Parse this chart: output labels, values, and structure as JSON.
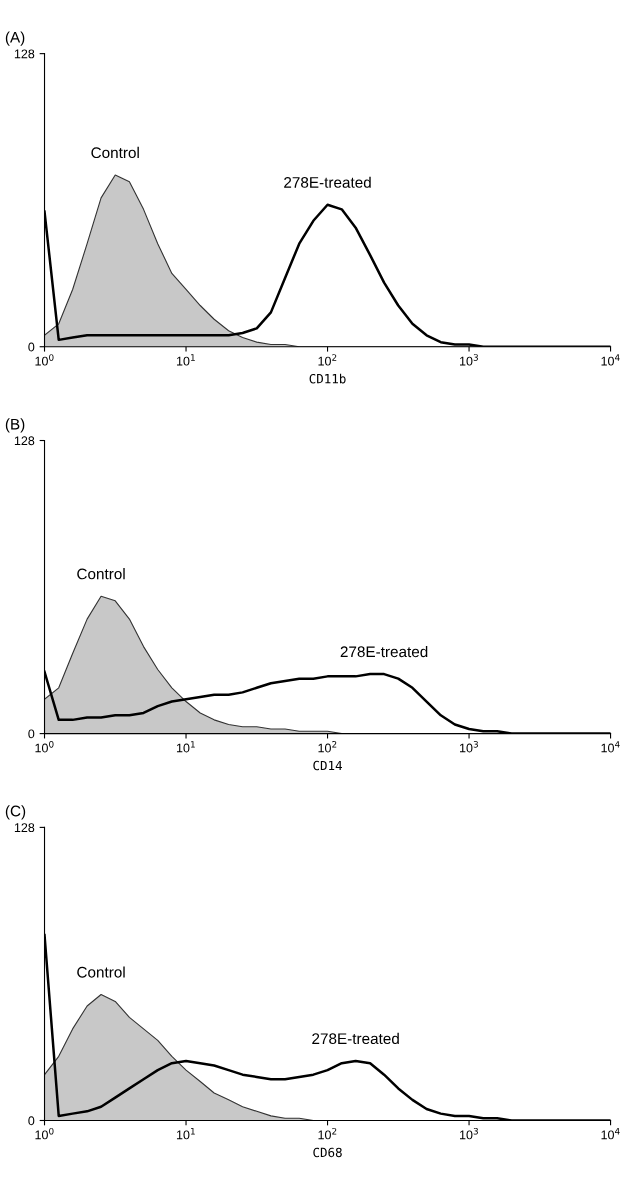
{
  "chart_data": [
    {
      "type": "area",
      "title": "(A)",
      "xlabel": "CD11b",
      "log": "x",
      "xlim": [
        1,
        10000
      ],
      "ylim": [
        0,
        128
      ],
      "xticks": [
        {
          "value": 1,
          "label": "10$^{0}$"
        },
        {
          "value": 10,
          "label": "10$^{1}$"
        },
        {
          "value": 100,
          "label": "10$^{2}$"
        },
        {
          "value": 1000,
          "label": "10$^{3}$"
        },
        {
          "value": 10000,
          "label": "10$^{4}$"
        }
      ],
      "yticks": [
        0,
        128
      ],
      "grid": false,
      "legend": false,
      "x": [
        1,
        1.26,
        1.58,
        2,
        2.51,
        3.16,
        3.98,
        5.01,
        6.31,
        7.94,
        10,
        12.6,
        15.8,
        20,
        25.1,
        31.6,
        39.8,
        50.1,
        63.1,
        79.4,
        100,
        126,
        158,
        200,
        251,
        316,
        398,
        501,
        631,
        794,
        1000,
        1260,
        1580,
        2000,
        2510,
        3160,
        3980,
        5010,
        6310,
        7940,
        10000
      ],
      "series": [
        {
          "name": "Control",
          "color": "#c8c8c8",
          "values": [
            5,
            10,
            25,
            45,
            65,
            75,
            72,
            60,
            45,
            32,
            25,
            18,
            12,
            7,
            4,
            2,
            1,
            1,
            0,
            0,
            0,
            0,
            0,
            0,
            0,
            0,
            0,
            0,
            0,
            0,
            0,
            0,
            0,
            0,
            0,
            0,
            0,
            0,
            0,
            0,
            0
          ]
        },
        {
          "name": "278E-treated",
          "type": "line",
          "color": "#000000",
          "values": [
            59,
            3,
            4,
            5,
            5,
            5,
            5,
            5,
            5,
            5,
            5,
            5,
            5,
            5,
            6,
            8,
            15,
            30,
            45,
            55,
            62,
            60,
            52,
            40,
            28,
            18,
            10,
            5,
            2,
            1,
            1,
            0,
            0,
            0,
            0,
            0,
            0,
            0,
            0,
            0,
            0
          ]
        }
      ]
    },
    {
      "type": "area",
      "title": "(B)",
      "xlabel": "CD14",
      "log": "x",
      "xlim": [
        1,
        10000
      ],
      "ylim": [
        0,
        128
      ],
      "xticks": [
        {
          "value": 1,
          "label": "10$^{0}$"
        },
        {
          "value": 10,
          "label": "10$^{1}$"
        },
        {
          "value": 100,
          "label": "10$^{2}$"
        },
        {
          "value": 1000,
          "label": "10$^{3}$"
        },
        {
          "value": 10000,
          "label": "10$^{4}$"
        }
      ],
      "yticks": [
        0,
        128
      ],
      "grid": false,
      "legend": false,
      "x": [
        1,
        1.26,
        1.58,
        2,
        2.51,
        3.16,
        3.98,
        5.01,
        6.31,
        7.94,
        10,
        12.6,
        15.8,
        20,
        25.1,
        31.6,
        39.8,
        50.1,
        63.1,
        79.4,
        100,
        126,
        158,
        200,
        251,
        316,
        398,
        501,
        631,
        794,
        1000,
        1260,
        1580,
        2000,
        2510,
        3160,
        3980,
        5010,
        6310,
        7940,
        10000
      ],
      "series": [
        {
          "name": "Control",
          "color": "#c8c8c8",
          "values": [
            15,
            20,
            35,
            50,
            60,
            58,
            50,
            38,
            28,
            20,
            14,
            9,
            6,
            4,
            3,
            3,
            2,
            2,
            1,
            1,
            1,
            0,
            0,
            0,
            0,
            0,
            0,
            0,
            0,
            0,
            0,
            0,
            0,
            0,
            0,
            0,
            0,
            0,
            0,
            0,
            0
          ]
        },
        {
          "name": "278E-treated",
          "type": "line",
          "color": "#000000",
          "values": [
            27,
            6,
            6,
            7,
            7,
            8,
            8,
            9,
            12,
            14,
            15,
            16,
            17,
            17,
            18,
            20,
            22,
            23,
            24,
            24,
            25,
            25,
            25,
            26,
            26,
            24,
            20,
            14,
            8,
            4,
            2,
            1,
            1,
            0,
            0,
            0,
            0,
            0,
            0,
            0,
            0
          ]
        }
      ]
    },
    {
      "type": "area",
      "title": "(C)",
      "xlabel": "CD68",
      "log": "x",
      "xlim": [
        1,
        10000
      ],
      "ylim": [
        0,
        128
      ],
      "xticks": [
        {
          "value": 1,
          "label": "10$^{0}$"
        },
        {
          "value": 10,
          "label": "10$^{1}$"
        },
        {
          "value": 100,
          "label": "10$^{2}$"
        },
        {
          "value": 1000,
          "label": "10$^{3}$"
        },
        {
          "value": 10000,
          "label": "10$^{4}$"
        }
      ],
      "yticks": [
        0,
        128
      ],
      "grid": false,
      "legend": false,
      "x": [
        1,
        1.26,
        1.58,
        2,
        2.51,
        3.16,
        3.98,
        5.01,
        6.31,
        7.94,
        10,
        12.6,
        15.8,
        20,
        25.1,
        31.6,
        39.8,
        50.1,
        63.1,
        79.4,
        100,
        126,
        158,
        200,
        251,
        316,
        398,
        501,
        631,
        794,
        1000,
        1260,
        1580,
        2000,
        2510,
        3160,
        3980,
        5010,
        6310,
        7940,
        10000
      ],
      "series": [
        {
          "name": "Control",
          "color": "#c8c8c8",
          "values": [
            20,
            28,
            40,
            50,
            55,
            52,
            45,
            40,
            35,
            28,
            22,
            17,
            12,
            9,
            6,
            4,
            2,
            1,
            1,
            0,
            0,
            0,
            0,
            0,
            0,
            0,
            0,
            0,
            0,
            0,
            0,
            0,
            0,
            0,
            0,
            0,
            0,
            0,
            0,
            0,
            0
          ]
        },
        {
          "name": "278E-treated",
          "type": "line",
          "color": "#000000",
          "values": [
            81,
            2,
            3,
            4,
            6,
            10,
            14,
            18,
            22,
            25,
            26,
            25,
            24,
            22,
            20,
            19,
            18,
            18,
            19,
            20,
            22,
            25,
            26,
            25,
            20,
            14,
            9,
            5,
            3,
            2,
            2,
            1,
            1,
            0,
            0,
            0,
            0,
            0,
            0,
            0,
            0
          ]
        }
      ]
    }
  ]
}
